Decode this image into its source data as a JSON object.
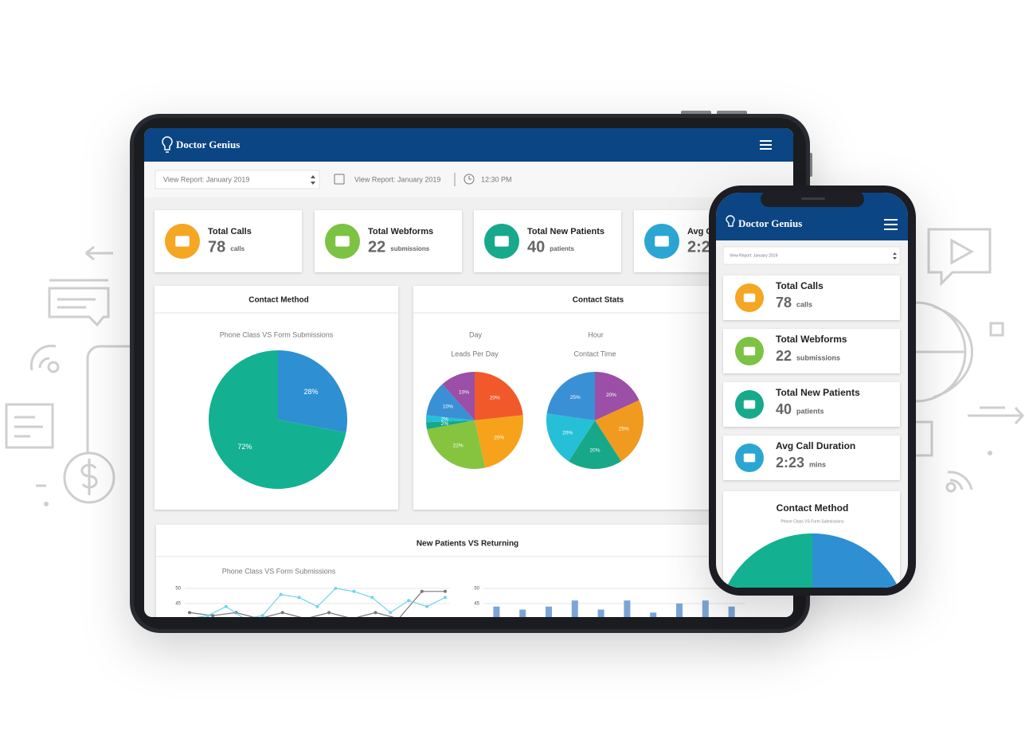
{
  "brand": "Doctor Genius",
  "toolbar": {
    "report_select": "View Report: January 2019",
    "report_date": "View Report: January 2019",
    "time": "12:30 PM"
  },
  "stats": [
    {
      "label": "Total Calls",
      "value": 78,
      "unit": "calls",
      "color": "#f5a623"
    },
    {
      "label": "Total Webforms",
      "value": 22,
      "unit": "submissions",
      "color": "#7cc243"
    },
    {
      "label": "Total New Patients",
      "value": 40,
      "unit": "patients",
      "color": "#17a98c"
    },
    {
      "label": "Avg Call Duration",
      "value": "2:23",
      "unit": "mins",
      "color": "#2ba6d3"
    }
  ],
  "panels": {
    "contact_stats": "Contact Stats",
    "new_vs_returning": "New Patients VS Returning"
  },
  "chart_data": [
    {
      "type": "pie",
      "title": "Contact Method",
      "subtitle": "Phone Class VS Form Submissions",
      "values": [
        28,
        72
      ],
      "value_labels": [
        "28%",
        "72%"
      ],
      "colors": [
        "#2e8fd3",
        "#13b191"
      ]
    },
    {
      "type": "pie",
      "title": "Day",
      "subtitle": "Leads Per Day",
      "values": [
        20,
        20,
        22,
        2,
        2,
        10,
        10
      ],
      "value_labels": [
        "20%",
        "20%",
        "22%",
        "2%",
        "2%",
        "10%",
        "10%"
      ],
      "colors": [
        "#f2592a",
        "#f7a21b",
        "#86c440",
        "#16a889",
        "#26bfd8",
        "#3a90d5",
        "#9b4fa6"
      ]
    },
    {
      "type": "pie",
      "title": "Hour",
      "subtitle": "Contact Time",
      "values": [
        20,
        25,
        20,
        20,
        25
      ],
      "value_labels": [
        "20%",
        "25%",
        "20%",
        "20%",
        "25%"
      ],
      "colors": [
        "#9b4fa6",
        "#f09a1f",
        "#16a889",
        "#26bfd8",
        "#3a90d5"
      ]
    },
    {
      "type": "line",
      "subtitle": "Phone Class VS Form Submissions",
      "ylim": [
        40,
        50
      ],
      "yticks": [
        50,
        45
      ],
      "grid": true,
      "series": [
        {
          "color": "#777777",
          "values": [
            42,
            41,
            42,
            40,
            42,
            40,
            42,
            40,
            42,
            40,
            49,
            49
          ]
        },
        {
          "color": "#73d2ec",
          "values": [
            40,
            41,
            44,
            40,
            41,
            48,
            47,
            44,
            50,
            49,
            47,
            42,
            46,
            44,
            47
          ]
        }
      ]
    },
    {
      "type": "bar",
      "ylim": [
        40,
        50
      ],
      "yticks": [
        50,
        45
      ],
      "grid": true,
      "color": "#7aa5d8",
      "values": [
        44,
        43,
        44,
        46,
        43,
        46,
        42,
        45,
        46,
        44
      ]
    }
  ]
}
